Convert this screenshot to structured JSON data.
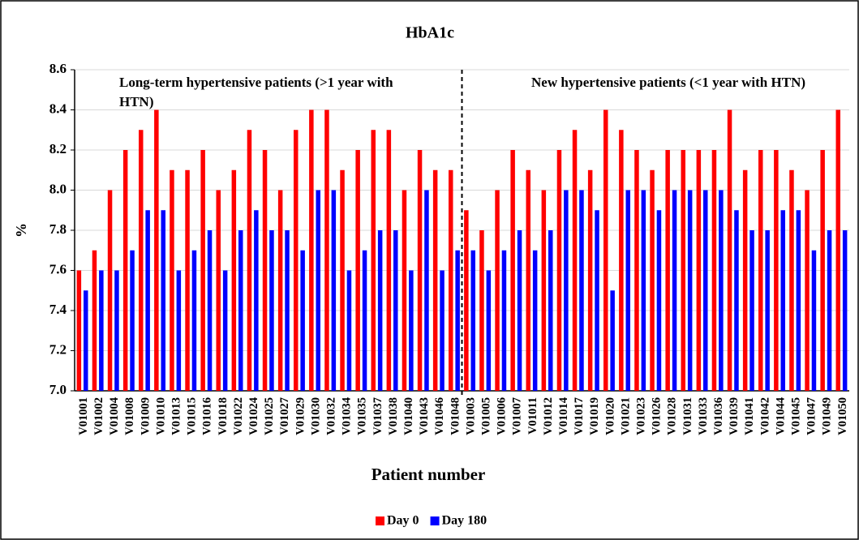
{
  "chart_data": {
    "type": "bar",
    "title": "HbA1c",
    "x_label": "Patient number",
    "y_label": "%",
    "categories": [
      "V01001",
      "V01002",
      "V01004",
      "V01008",
      "V01009",
      "V01010",
      "V01013",
      "V01015",
      "V01016",
      "V01018",
      "V01022",
      "V01024",
      "V01025",
      "V01027",
      "V01029",
      "V01030",
      "V01032",
      "V01034",
      "V01035",
      "V01037",
      "V01038",
      "V01040",
      "V01043",
      "V01046",
      "V01048",
      "V01003",
      "V01005",
      "V01006",
      "V01007",
      "V01011",
      "V01012",
      "V01014",
      "V01017",
      "V01019",
      "V01020",
      "V01021",
      "V01023",
      "V01026",
      "V01028",
      "V01031",
      "V01033",
      "V01036",
      "V01039",
      "V01041",
      "V01042",
      "V01044",
      "V01045",
      "V01047",
      "V01049",
      "V01050"
    ],
    "series": [
      {
        "name": "Day 0",
        "color": "#ff0000",
        "values": [
          7.6,
          7.7,
          8.0,
          8.2,
          8.3,
          8.4,
          8.1,
          8.1,
          8.2,
          8.0,
          8.1,
          8.3,
          8.2,
          8.0,
          8.3,
          8.4,
          8.4,
          8.1,
          8.2,
          8.3,
          8.3,
          8.0,
          8.2,
          8.1,
          8.1,
          7.9,
          7.8,
          8.0,
          8.2,
          8.1,
          8.0,
          8.2,
          8.3,
          8.1,
          8.4,
          8.3,
          8.2,
          8.1,
          8.2,
          8.2,
          8.2,
          8.2,
          8.4,
          8.1,
          8.2,
          8.2,
          8.1,
          8.0,
          8.2,
          8.4
        ]
      },
      {
        "name": "Day 180",
        "color": "#0000ff",
        "values": [
          7.5,
          7.6,
          7.6,
          7.7,
          7.9,
          7.9,
          7.6,
          7.7,
          7.8,
          7.6,
          7.8,
          7.9,
          7.8,
          7.8,
          7.7,
          8.0,
          8.0,
          7.6,
          7.7,
          7.8,
          7.8,
          7.6,
          8.0,
          7.6,
          7.7,
          7.7,
          7.6,
          7.7,
          7.8,
          7.7,
          7.8,
          8.0,
          8.0,
          7.9,
          7.5,
          8.0,
          8.0,
          7.9,
          8.0,
          8.0,
          8.0,
          8.0,
          7.9,
          7.8,
          7.8,
          7.9,
          7.9,
          7.7,
          7.8,
          7.8
        ]
      }
    ],
    "ylim": [
      7.0,
      8.6
    ],
    "yticks": [
      {
        "value": 7.0,
        "label": "7.0"
      },
      7.2,
      7.4,
      7.6,
      7.8,
      {
        "value": 8.0,
        "label": "8.0"
      },
      8.2,
      8.4,
      8.6
    ],
    "grid": true,
    "annotations": [
      "Long-term hypertensive patients (>1 year with HTN)",
      "New hypertensive patients (<1 year with HTN)"
    ],
    "legend": "bottom"
  }
}
